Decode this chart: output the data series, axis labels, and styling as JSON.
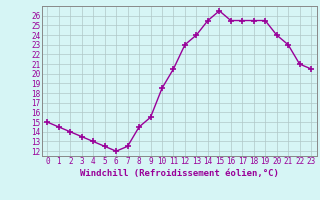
{
  "x": [
    0,
    1,
    2,
    3,
    4,
    5,
    6,
    7,
    8,
    9,
    10,
    11,
    12,
    13,
    14,
    15,
    16,
    17,
    18,
    19,
    20,
    21,
    22,
    23
  ],
  "y": [
    15,
    14.5,
    14,
    13.5,
    13,
    12.5,
    12,
    12.5,
    14.5,
    15.5,
    18.5,
    20.5,
    23,
    24,
    25.5,
    26.5,
    25.5,
    25.5,
    25.5,
    25.5,
    24,
    23,
    21,
    20.5
  ],
  "line_color": "#990099",
  "marker": "+",
  "marker_size": 4,
  "marker_lw": 1.2,
  "bg_color": "#d6f5f5",
  "grid_color": "#b0c8c8",
  "xlabel": "Windchill (Refroidissement éolien,°C)",
  "xlabel_fontsize": 6.5,
  "ytick_labels": [
    "12",
    "13",
    "14",
    "15",
    "16",
    "17",
    "18",
    "19",
    "20",
    "21",
    "22",
    "23",
    "24",
    "25",
    "26"
  ],
  "ylabel_ticks": [
    12,
    13,
    14,
    15,
    16,
    17,
    18,
    19,
    20,
    21,
    22,
    23,
    24,
    25,
    26
  ],
  "xtick_labels": [
    "0",
    "1",
    "2",
    "3",
    "4",
    "5",
    "6",
    "7",
    "8",
    "9",
    "10",
    "11",
    "12",
    "13",
    "14",
    "15",
    "16",
    "17",
    "18",
    "19",
    "20",
    "21",
    "22",
    "23"
  ],
  "ylim": [
    11.5,
    27.0
  ],
  "xlim": [
    -0.5,
    23.5
  ],
  "tick_fontsize": 5.5,
  "linewidth": 1.0
}
